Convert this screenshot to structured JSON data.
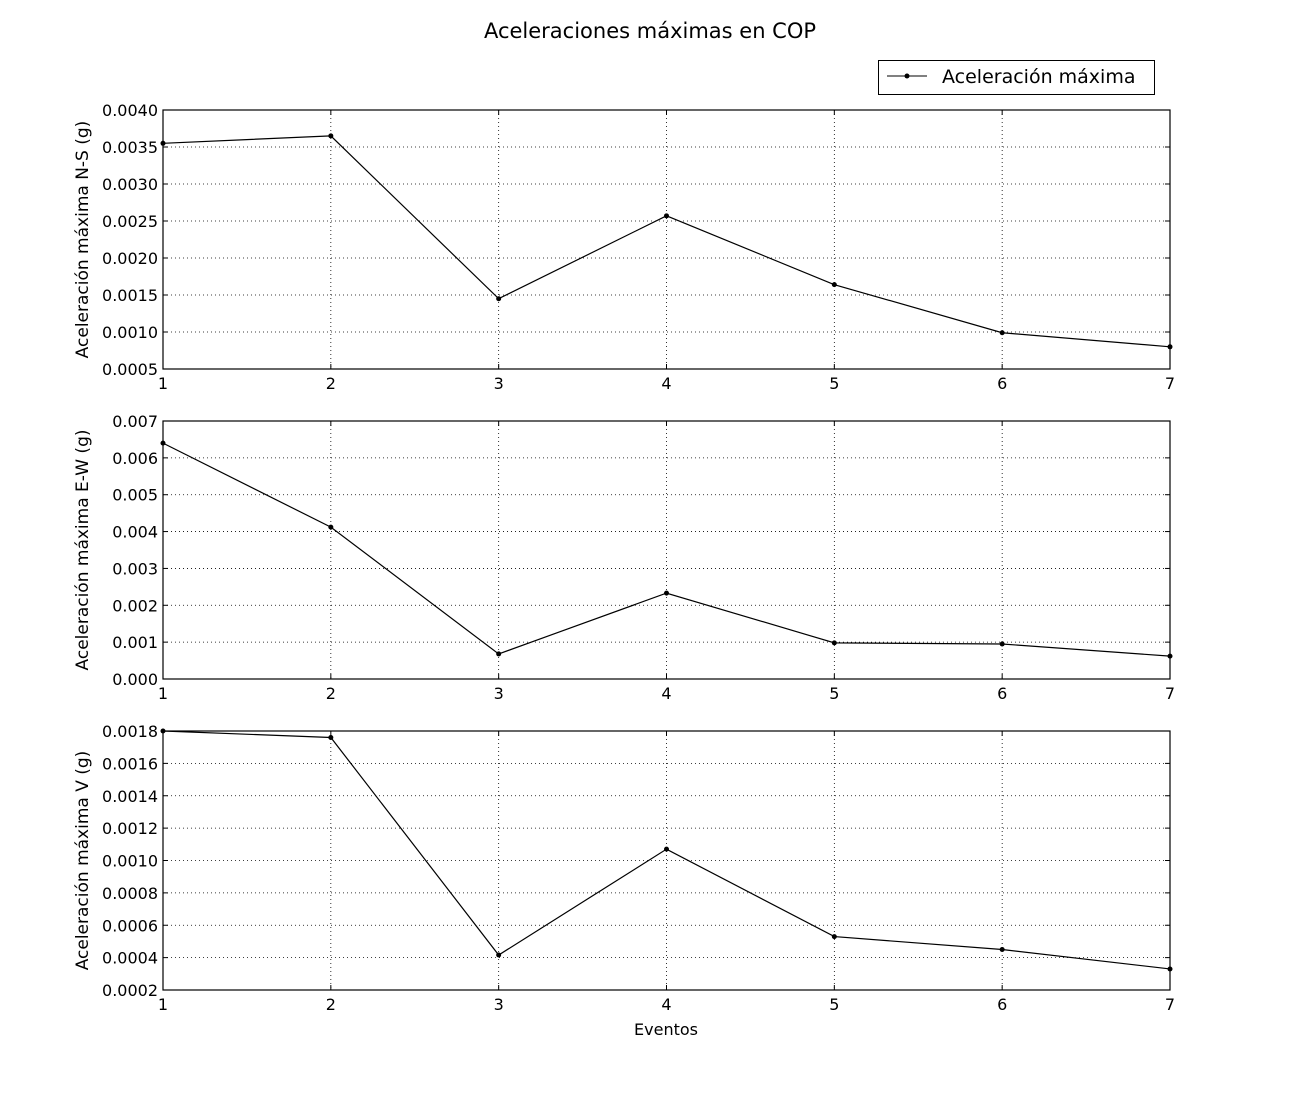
{
  "chart_data": {
    "type": "line",
    "title": "Aceleraciones máximas en COP",
    "legend": {
      "entries": [
        "Aceleración máxima"
      ],
      "placement": "top-right"
    },
    "xlabel": "Eventos",
    "x": [
      1,
      2,
      3,
      4,
      5,
      6,
      7
    ],
    "x_ticks": [
      "1",
      "2",
      "3",
      "4",
      "5",
      "6",
      "7"
    ],
    "xlim": [
      1,
      7
    ],
    "grid": true,
    "line_color": "#000000",
    "subplots": [
      {
        "ylabel": "Aceleración máxima N-S (g)",
        "ylim": [
          0.0005,
          0.004
        ],
        "y_ticks": [
          "0.0005",
          "0.0010",
          "0.0015",
          "0.0020",
          "0.0025",
          "0.0030",
          "0.0035",
          "0.0040"
        ],
        "series": [
          {
            "name": "Aceleración máxima",
            "values": [
              0.00355,
              0.00365,
              0.00145,
              0.00257,
              0.00164,
              0.00099,
              0.0008
            ]
          }
        ]
      },
      {
        "ylabel": "Aceleración máxima E-W (g)",
        "ylim": [
          0.0,
          0.007
        ],
        "y_ticks": [
          "0.000",
          "0.001",
          "0.002",
          "0.003",
          "0.004",
          "0.005",
          "0.006",
          "0.007"
        ],
        "series": [
          {
            "name": "Aceleración máxima",
            "values": [
              0.0064,
              0.00412,
              0.00068,
              0.00233,
              0.00098,
              0.00095,
              0.00062
            ]
          }
        ]
      },
      {
        "ylabel": "Aceleración máxima V (g)",
        "ylim": [
          0.0002,
          0.0018
        ],
        "y_ticks": [
          "0.0002",
          "0.0004",
          "0.0006",
          "0.0008",
          "0.0010",
          "0.0012",
          "0.0014",
          "0.0016",
          "0.0018"
        ],
        "series": [
          {
            "name": "Aceleración máxima",
            "values": [
              0.0018,
              0.00176,
              0.000416,
              0.00107,
              0.00053,
              0.00045,
              0.00033
            ]
          }
        ]
      }
    ]
  }
}
